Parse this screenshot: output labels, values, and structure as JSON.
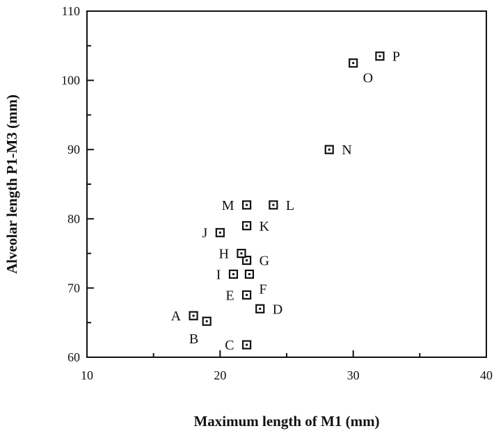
{
  "chart_data": {
    "type": "scatter",
    "xlabel": "Maximum length of M1 (mm)",
    "ylabel": "Alveolar length P1-M3 (mm)",
    "xlim": [
      10,
      40
    ],
    "ylim": [
      60,
      110
    ],
    "xticks": [
      10,
      20,
      30,
      40
    ],
    "yticks": [
      60,
      70,
      80,
      90,
      100,
      110
    ],
    "grid": false,
    "marker": "square-with-dot",
    "points": [
      {
        "label": "A",
        "x": 18.0,
        "y": 66.0,
        "label_pos": "left"
      },
      {
        "label": "B",
        "x": 19.0,
        "y": 65.2,
        "label_pos": "below-left"
      },
      {
        "label": "C",
        "x": 22.0,
        "y": 61.8,
        "label_pos": "left"
      },
      {
        "label": "D",
        "x": 23.0,
        "y": 67.0,
        "label_pos": "right"
      },
      {
        "label": "E",
        "x": 22.0,
        "y": 69.0,
        "label_pos": "left"
      },
      {
        "label": "F",
        "x": 22.2,
        "y": 72.0,
        "label_pos": "below-right"
      },
      {
        "label": "I",
        "x": 21.0,
        "y": 72.0,
        "label_pos": "left"
      },
      {
        "label": "G",
        "x": 22.0,
        "y": 74.0,
        "label_pos": "right"
      },
      {
        "label": "H",
        "x": 21.6,
        "y": 75.0,
        "label_pos": "left"
      },
      {
        "label": "J",
        "x": 20.0,
        "y": 78.0,
        "label_pos": "left"
      },
      {
        "label": "K",
        "x": 22.0,
        "y": 79.0,
        "label_pos": "right"
      },
      {
        "label": "M",
        "x": 22.0,
        "y": 82.0,
        "label_pos": "left"
      },
      {
        "label": "L",
        "x": 24.0,
        "y": 82.0,
        "label_pos": "right"
      },
      {
        "label": "N",
        "x": 28.2,
        "y": 90.0,
        "label_pos": "right"
      },
      {
        "label": "O",
        "x": 30.0,
        "y": 102.5,
        "label_pos": "below-right"
      },
      {
        "label": "P",
        "x": 32.0,
        "y": 103.5,
        "label_pos": "right"
      }
    ]
  }
}
